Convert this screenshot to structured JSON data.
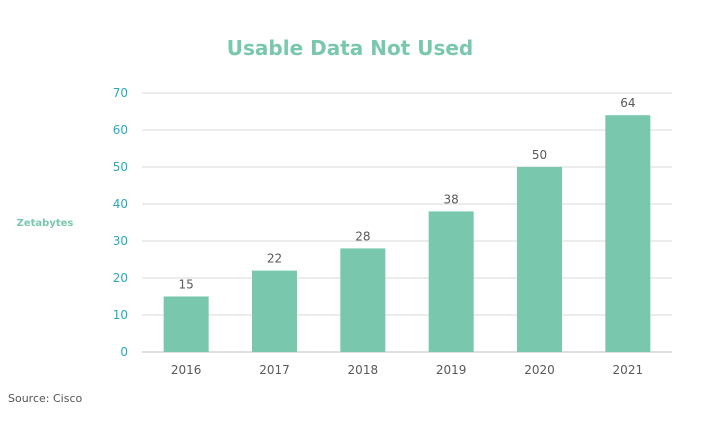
{
  "chart_data": {
    "type": "bar",
    "title": "Usable Data Not Used",
    "ylabel": "Zetabytes",
    "xlabel": "",
    "categories": [
      "2016",
      "2017",
      "2018",
      "2019",
      "2020",
      "2021"
    ],
    "values": [
      15,
      22,
      28,
      38,
      50,
      64
    ],
    "ylim": [
      0,
      70
    ],
    "yticks": [
      0,
      10,
      20,
      30,
      40,
      50,
      60,
      70
    ],
    "grid": true,
    "legend": "none",
    "data_labels": true
  },
  "source": "Source: Cisco",
  "colors": {
    "bar": "#79c8ad",
    "title": "#79c8ad",
    "ylabel": "#79c8ad",
    "ytick": "#29aabd",
    "xtick": "#595959",
    "data_label": "#595959",
    "grid": "#d9d9d9",
    "axis": "#bfbfbf"
  }
}
